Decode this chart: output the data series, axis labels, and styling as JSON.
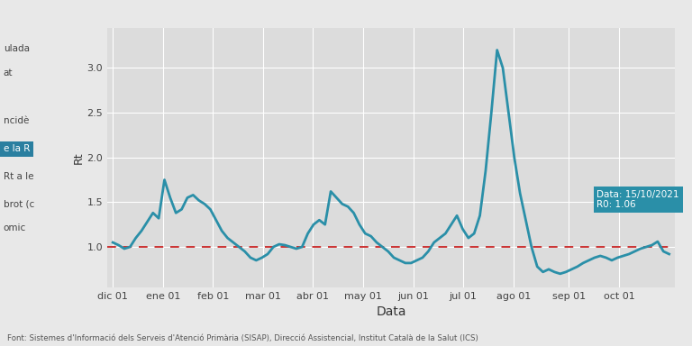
{
  "line_color": "#2a8fa8",
  "line_width": 2.0,
  "ref_line_color": "#cc3333",
  "ref_line_style": "--",
  "ref_line_value": 1.0,
  "fig_bg_color": "#e8e8e8",
  "plot_bg_color": "#dcdcdc",
  "xlabel": "Data",
  "ylabel": "Rt",
  "footer": "Font: Sistemes d'Informació dels Serveis d'Atenció Primària (SISAP), Direcció Assistencial, Institut Català de la Salut (ICS)",
  "tooltip_text": "Data: 15/10/2021\nR0: 1.06",
  "tooltip_bg": "#2a8fa8",
  "tooltip_text_color": "#ffffff",
  "ytick_labels": [
    "1.0",
    "1.5",
    "2.0",
    "2.5",
    "3.0"
  ],
  "ytick_values": [
    1.0,
    1.5,
    2.0,
    2.5,
    3.0
  ],
  "ylim": [
    0.55,
    3.45
  ],
  "x_labels": [
    "dic 01",
    "ene 01",
    "feb 01",
    "mar 01",
    "abr 01",
    "may 01",
    "jun 01",
    "jul 01",
    "ago 01",
    "sep 01",
    "oct 01"
  ],
  "left_panel_texts": [
    {
      "text": "ulada",
      "highlighted": false
    },
    {
      "text": "at",
      "highlighted": false
    },
    {
      "text": "ncidè",
      "highlighted": false
    },
    {
      "text": "e la R",
      "highlighted": true
    },
    {
      "text": "Rt a le",
      "highlighted": false
    },
    {
      "text": "brot (c",
      "highlighted": false
    },
    {
      "text": "omic",
      "highlighted": false
    }
  ],
  "values": [
    1.05,
    1.02,
    0.98,
    1.0,
    1.1,
    1.18,
    1.28,
    1.38,
    1.32,
    1.75,
    1.55,
    1.38,
    1.42,
    1.55,
    1.58,
    1.52,
    1.48,
    1.42,
    1.3,
    1.18,
    1.1,
    1.05,
    1.0,
    0.95,
    0.88,
    0.85,
    0.88,
    0.92,
    1.0,
    1.03,
    1.02,
    1.0,
    0.98,
    1.0,
    1.15,
    1.25,
    1.3,
    1.25,
    1.62,
    1.55,
    1.48,
    1.45,
    1.38,
    1.25,
    1.15,
    1.12,
    1.05,
    1.0,
    0.95,
    0.88,
    0.85,
    0.82,
    0.82,
    0.85,
    0.88,
    0.95,
    1.05,
    1.1,
    1.15,
    1.25,
    1.35,
    1.2,
    1.1,
    1.15,
    1.35,
    1.85,
    2.5,
    3.2,
    3.0,
    2.5,
    2.0,
    1.6,
    1.3,
    1.0,
    0.78,
    0.72,
    0.75,
    0.72,
    0.7,
    0.72,
    0.75,
    0.78,
    0.82,
    0.85,
    0.88,
    0.9,
    0.88,
    0.85,
    0.88,
    0.9,
    0.92,
    0.95,
    0.98,
    1.0,
    1.02,
    1.06,
    0.95,
    0.92
  ],
  "tick_x_positions_norm": [
    0.0,
    0.09,
    0.18,
    0.27,
    0.36,
    0.45,
    0.54,
    0.63,
    0.72,
    0.82,
    0.91
  ]
}
